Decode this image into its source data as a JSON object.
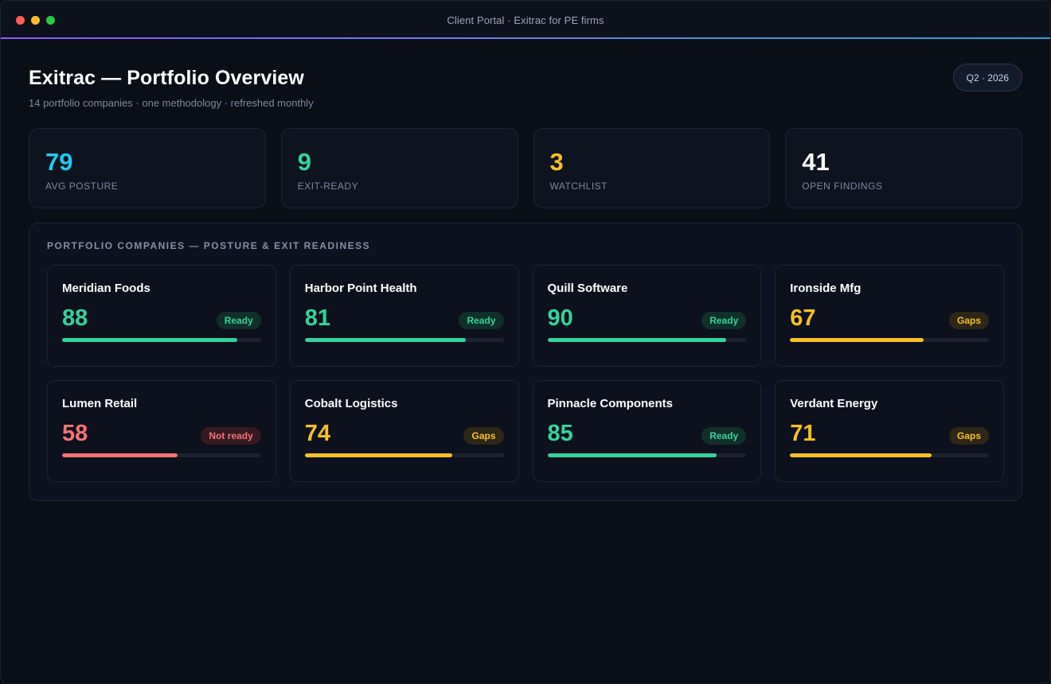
{
  "window": {
    "title": "Client Portal · Exitrac for PE firms",
    "controls": [
      {
        "name": "close",
        "color": "#ff5f57"
      },
      {
        "name": "minimize",
        "color": "#febc2e"
      },
      {
        "name": "zoom",
        "color": "#28c840"
      }
    ]
  },
  "header": {
    "title": "Exitrac — Portfolio Overview",
    "subtitle": "14 portfolio companies · one methodology · refreshed monthly",
    "period": "Q2 · 2026"
  },
  "kpis": [
    {
      "value": "79",
      "label": "Avg posture",
      "color": "#22c9f0"
    },
    {
      "value": "9",
      "label": "Exit-ready",
      "color": "#34d399"
    },
    {
      "value": "3",
      "label": "Watchlist",
      "color": "#fbbf24"
    },
    {
      "value": "41",
      "label": "Open findings",
      "color": "#ffffff"
    }
  ],
  "panel": {
    "title": "Portfolio companies — posture & exit readiness"
  },
  "status_colors": {
    "ready": {
      "text": "#34d399",
      "bg": "#10302a",
      "bar": "#34d399"
    },
    "gaps": {
      "text": "#fbbf24",
      "bg": "#2e2616",
      "bar": "#fbbf24"
    },
    "not_ready": {
      "text": "#f87171",
      "bg": "#361a22",
      "bar": "#f87171"
    }
  },
  "companies": [
    {
      "name": "Meridian Foods",
      "score": 88,
      "status": "Ready",
      "status_key": "ready"
    },
    {
      "name": "Harbor Point Health",
      "score": 81,
      "status": "Ready",
      "status_key": "ready"
    },
    {
      "name": "Quill Software",
      "score": 90,
      "status": "Ready",
      "status_key": "ready"
    },
    {
      "name": "Ironside Mfg",
      "score": 67,
      "status": "Gaps",
      "status_key": "gaps"
    },
    {
      "name": "Lumen Retail",
      "score": 58,
      "status": "Not ready",
      "status_key": "not_ready"
    },
    {
      "name": "Cobalt Logistics",
      "score": 74,
      "status": "Gaps",
      "status_key": "gaps"
    },
    {
      "name": "Pinnacle Components",
      "score": 85,
      "status": "Ready",
      "status_key": "ready"
    },
    {
      "name": "Verdant Energy",
      "score": 71,
      "status": "Gaps",
      "status_key": "gaps"
    }
  ]
}
